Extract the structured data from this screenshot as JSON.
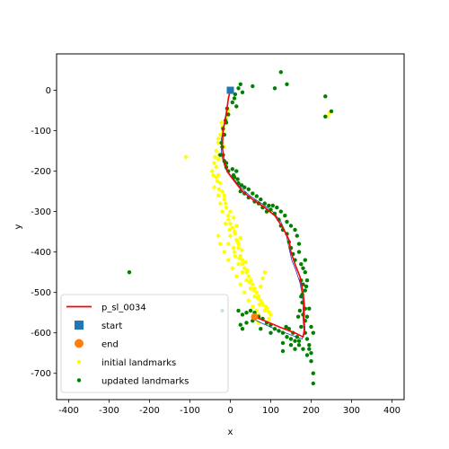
{
  "chart_data": {
    "type": "scatter",
    "xlabel": "x",
    "ylabel": "y",
    "xlim": [
      -430,
      430
    ],
    "ylim": [
      -765,
      90
    ],
    "xticks": [
      -400,
      -300,
      -200,
      -100,
      0,
      100,
      200,
      300,
      400
    ],
    "yticks": [
      0,
      -100,
      -200,
      -300,
      -400,
      -500,
      -600,
      -700
    ],
    "grid": false,
    "legend_position": "lower-left",
    "colors": {
      "trajectory": "#ff0000",
      "start": "#1f77b4",
      "end": "#ff7f0e",
      "initial_landmarks": "#ffff00",
      "updated_landmarks": "#008000",
      "reference": "#1f3fbf"
    },
    "legend": [
      {
        "label": "p_sl_0034",
        "kind": "line",
        "color": "#ff0000"
      },
      {
        "label": "start",
        "kind": "square",
        "color": "#1f77b4"
      },
      {
        "label": "end",
        "kind": "circle",
        "color": "#ff7f0e"
      },
      {
        "label": "initial landmarks",
        "kind": "dot",
        "color": "#ffff00"
      },
      {
        "label": "updated landmarks",
        "kind": "dot",
        "color": "#008000"
      }
    ],
    "series": [
      {
        "name": "p_sl_0034",
        "type": "line",
        "points": [
          [
            0,
            0
          ],
          [
            -5,
            -20
          ],
          [
            -10,
            -60
          ],
          [
            -18,
            -100
          ],
          [
            -20,
            -140
          ],
          [
            -15,
            -180
          ],
          [
            -5,
            -205
          ],
          [
            10,
            -225
          ],
          [
            30,
            -250
          ],
          [
            55,
            -270
          ],
          [
            85,
            -290
          ],
          [
            110,
            -310
          ],
          [
            130,
            -340
          ],
          [
            145,
            -370
          ],
          [
            150,
            -400
          ],
          [
            160,
            -430
          ],
          [
            172,
            -460
          ],
          [
            180,
            -500
          ],
          [
            183,
            -530
          ],
          [
            182,
            -560
          ],
          [
            184,
            -590
          ],
          [
            180,
            -610
          ],
          [
            160,
            -600
          ],
          [
            120,
            -585
          ],
          [
            85,
            -570
          ],
          [
            60,
            -560
          ]
        ]
      },
      {
        "name": "start",
        "type": "marker",
        "points": [
          [
            0,
            0
          ]
        ]
      },
      {
        "name": "end",
        "type": "marker",
        "points": [
          [
            60,
            -560
          ]
        ]
      },
      {
        "name": "initial landmarks",
        "type": "scatter",
        "points": [
          [
            -5,
            -50
          ],
          [
            -10,
            -70
          ],
          [
            -20,
            -90
          ],
          [
            -25,
            -110
          ],
          [
            -30,
            -130
          ],
          [
            -35,
            -150
          ],
          [
            -30,
            -170
          ],
          [
            -35,
            -190
          ],
          [
            -30,
            -210
          ],
          [
            -25,
            -230
          ],
          [
            -20,
            -250
          ],
          [
            -15,
            -270
          ],
          [
            -10,
            -290
          ],
          [
            -5,
            -310
          ],
          [
            0,
            -330
          ],
          [
            10,
            -350
          ],
          [
            15,
            -370
          ],
          [
            20,
            -390
          ],
          [
            25,
            -410
          ],
          [
            30,
            -430
          ],
          [
            40,
            -450
          ],
          [
            50,
            -470
          ],
          [
            60,
            -490
          ],
          [
            70,
            -510
          ],
          [
            80,
            -530
          ],
          [
            85,
            -545
          ],
          [
            -110,
            -165
          ],
          [
            -20,
            -120
          ],
          [
            -28,
            -160
          ],
          [
            -40,
            -180
          ],
          [
            -45,
            -200
          ],
          [
            -35,
            -215
          ],
          [
            -40,
            -240
          ],
          [
            -30,
            -260
          ],
          [
            -25,
            -280
          ],
          [
            -20,
            -300
          ],
          [
            -5,
            -320
          ],
          [
            5,
            -340
          ],
          [
            0,
            -360
          ],
          [
            20,
            -380
          ],
          [
            10,
            -400
          ],
          [
            30,
            -420
          ],
          [
            35,
            -440
          ],
          [
            45,
            -460
          ],
          [
            55,
            -480
          ],
          [
            65,
            -500
          ],
          [
            75,
            -520
          ],
          [
            90,
            -540
          ],
          [
            -30,
            -360
          ],
          [
            -25,
            -380
          ],
          [
            -15,
            -400
          ],
          [
            -5,
            -420
          ],
          [
            5,
            -440
          ],
          [
            15,
            -460
          ],
          [
            25,
            -480
          ],
          [
            35,
            -500
          ],
          [
            45,
            -520
          ],
          [
            55,
            -535
          ],
          [
            65,
            -545
          ],
          [
            70,
            -555
          ],
          [
            75,
            -485
          ],
          [
            80,
            -465
          ],
          [
            85,
            -450
          ],
          [
            240,
            -65
          ],
          [
            245,
            -55
          ],
          [
            -15,
            -140
          ],
          [
            -18,
            -100
          ],
          [
            -22,
            -80
          ],
          [
            -8,
            -60
          ],
          [
            -30,
            -120
          ],
          [
            -38,
            -165
          ],
          [
            -42,
            -210
          ],
          [
            -32,
            -225
          ],
          [
            -28,
            -245
          ],
          [
            -15,
            -260
          ],
          [
            -12,
            -280
          ],
          [
            0,
            -300
          ],
          [
            8,
            -315
          ],
          [
            15,
            -335
          ],
          [
            12,
            -355
          ],
          [
            25,
            -365
          ],
          [
            18,
            -375
          ],
          [
            28,
            -395
          ],
          [
            22,
            -415
          ],
          [
            38,
            -425
          ],
          [
            42,
            -445
          ],
          [
            48,
            -475
          ],
          [
            58,
            -495
          ],
          [
            68,
            -515
          ],
          [
            78,
            -525
          ],
          [
            88,
            -535
          ],
          [
            95,
            -548
          ],
          [
            100,
            -555
          ],
          [
            95,
            -565
          ],
          [
            70,
            -575
          ],
          [
            -12,
            -330
          ],
          [
            -2,
            -345
          ],
          [
            -5,
            -380
          ],
          [
            8,
            -390
          ],
          [
            12,
            -410
          ],
          [
            20,
            -430
          ],
          [
            30,
            -450
          ],
          [
            40,
            -470
          ],
          [
            50,
            -490
          ],
          [
            60,
            -510
          ],
          [
            72,
            -530
          ]
        ]
      },
      {
        "name": "updated landmarks",
        "type": "scatter",
        "points": [
          [
            10,
            -20
          ],
          [
            15,
            -40
          ],
          [
            20,
            5
          ],
          [
            25,
            15
          ],
          [
            30,
            -5
          ],
          [
            55,
            10
          ],
          [
            110,
            5
          ],
          [
            140,
            15
          ],
          [
            125,
            45
          ],
          [
            -5,
            -60
          ],
          [
            -10,
            -80
          ],
          [
            -15,
            -110
          ],
          [
            -20,
            -140
          ],
          [
            -25,
            -160
          ],
          [
            -15,
            -175
          ],
          [
            -10,
            -190
          ],
          [
            5,
            -195
          ],
          [
            15,
            -200
          ],
          [
            10,
            -215
          ],
          [
            20,
            -230
          ],
          [
            25,
            -250
          ],
          [
            35,
            -255
          ],
          [
            45,
            -265
          ],
          [
            60,
            -275
          ],
          [
            70,
            -280
          ],
          [
            80,
            -290
          ],
          [
            90,
            -300
          ],
          [
            100,
            -295
          ],
          [
            110,
            -305
          ],
          [
            120,
            -320
          ],
          [
            125,
            -335
          ],
          [
            130,
            -345
          ],
          [
            140,
            -355
          ],
          [
            145,
            -375
          ],
          [
            150,
            -390
          ],
          [
            155,
            -405
          ],
          [
            160,
            -420
          ],
          [
            170,
            -400
          ],
          [
            175,
            -430
          ],
          [
            180,
            -440
          ],
          [
            185,
            -450
          ],
          [
            175,
            -470
          ],
          [
            180,
            -480
          ],
          [
            185,
            -495
          ],
          [
            175,
            -510
          ],
          [
            178,
            -525
          ],
          [
            185,
            -540
          ],
          [
            180,
            -555
          ],
          [
            185,
            -570
          ],
          [
            175,
            -585
          ],
          [
            185,
            -600
          ],
          [
            190,
            -615
          ],
          [
            195,
            -630
          ],
          [
            200,
            -650
          ],
          [
            200,
            -670
          ],
          [
            205,
            -700
          ],
          [
            205,
            -725
          ],
          [
            180,
            -640
          ],
          [
            170,
            -630
          ],
          [
            160,
            -620
          ],
          [
            150,
            -615
          ],
          [
            140,
            -610
          ],
          [
            130,
            -600
          ],
          [
            120,
            -595
          ],
          [
            110,
            -590
          ],
          [
            100,
            -580
          ],
          [
            90,
            -575
          ],
          [
            80,
            -565
          ],
          [
            70,
            -560
          ],
          [
            60,
            -550
          ],
          [
            50,
            -545
          ],
          [
            40,
            -550
          ],
          [
            30,
            -555
          ],
          [
            20,
            -545
          ],
          [
            25,
            -580
          ],
          [
            30,
            -590
          ],
          [
            40,
            -575
          ],
          [
            55,
            -570
          ],
          [
            75,
            -590
          ],
          [
            100,
            -600
          ],
          [
            130,
            -625
          ],
          [
            150,
            -630
          ],
          [
            160,
            -640
          ],
          [
            130,
            -645
          ],
          [
            -250,
            -450
          ],
          [
            -20,
            -545
          ],
          [
            235,
            -15
          ],
          [
            235,
            -65
          ],
          [
            250,
            -52
          ],
          [
            195,
            -540
          ],
          [
            190,
            -560
          ],
          [
            200,
            -585
          ],
          [
            205,
            -600
          ],
          [
            195,
            -640
          ],
          [
            190,
            -655
          ],
          [
            170,
            -620
          ],
          [
            165,
            -610
          ],
          [
            155,
            -600
          ],
          [
            145,
            -590
          ],
          [
            138,
            -585
          ],
          [
            168,
            -560
          ],
          [
            172,
            -545
          ],
          [
            178,
            -505
          ],
          [
            188,
            -485
          ],
          [
            190,
            -470
          ],
          [
            185,
            -420
          ],
          [
            170,
            -380
          ],
          [
            165,
            -360
          ],
          [
            160,
            -345
          ],
          [
            150,
            -335
          ],
          [
            140,
            -325
          ],
          [
            135,
            -310
          ],
          [
            125,
            -300
          ],
          [
            115,
            -290
          ],
          [
            105,
            -285
          ],
          [
            95,
            -285
          ],
          [
            85,
            -280
          ],
          [
            75,
            -270
          ],
          [
            65,
            -262
          ],
          [
            55,
            -255
          ],
          [
            45,
            -245
          ],
          [
            35,
            -240
          ],
          [
            28,
            -235
          ],
          [
            18,
            -220
          ],
          [
            8,
            -210
          ],
          [
            -5,
            -200
          ],
          [
            -10,
            -180
          ],
          [
            -18,
            -160
          ],
          [
            -22,
            -130
          ],
          [
            -18,
            -95
          ],
          [
            -12,
            -75
          ],
          [
            -8,
            -45
          ],
          [
            5,
            -30
          ],
          [
            12,
            -10
          ]
        ]
      },
      {
        "name": "reference",
        "type": "line",
        "points": [
          [
            0,
            0
          ],
          [
            -8,
            -40
          ],
          [
            -15,
            -80
          ],
          [
            -22,
            -120
          ],
          [
            -22,
            -160
          ],
          [
            -12,
            -195
          ],
          [
            5,
            -215
          ],
          [
            25,
            -240
          ],
          [
            50,
            -262
          ],
          [
            80,
            -282
          ],
          [
            105,
            -300
          ],
          [
            125,
            -325
          ],
          [
            138,
            -355
          ],
          [
            145,
            -390
          ],
          [
            152,
            -420
          ],
          [
            162,
            -445
          ],
          [
            172,
            -475
          ],
          [
            178,
            -505
          ],
          [
            180,
            -535
          ],
          [
            180,
            -565
          ],
          [
            182,
            -595
          ],
          [
            178,
            -615
          ],
          [
            150,
            -605
          ],
          [
            110,
            -590
          ],
          [
            75,
            -575
          ],
          [
            55,
            -565
          ]
        ]
      }
    ]
  }
}
